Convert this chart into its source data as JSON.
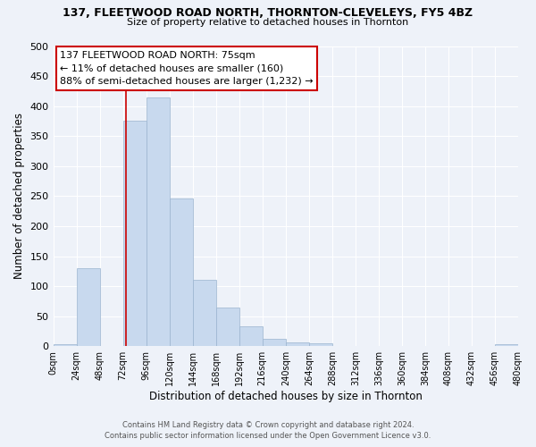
{
  "title": "137, FLEETWOOD ROAD NORTH, THORNTON-CLEVELEYS, FY5 4BZ",
  "subtitle": "Size of property relative to detached houses in Thornton",
  "xlabel": "Distribution of detached houses by size in Thornton",
  "ylabel": "Number of detached properties",
  "bar_color": "#c8d9ee",
  "bar_edge_color": "#9ab4cf",
  "background_color": "#eef2f9",
  "grid_color": "#ffffff",
  "bin_edges": [
    0,
    24,
    48,
    72,
    96,
    120,
    144,
    168,
    192,
    216,
    240,
    264,
    288,
    312,
    336,
    360,
    384,
    408,
    432,
    456,
    480
  ],
  "bin_labels": [
    "0sqm",
    "24sqm",
    "48sqm",
    "72sqm",
    "96sqm",
    "120sqm",
    "144sqm",
    "168sqm",
    "192sqm",
    "216sqm",
    "240sqm",
    "264sqm",
    "288sqm",
    "312sqm",
    "336sqm",
    "360sqm",
    "384sqm",
    "408sqm",
    "432sqm",
    "456sqm",
    "480sqm"
  ],
  "counts": [
    3,
    130,
    0,
    376,
    415,
    246,
    111,
    65,
    33,
    12,
    7,
    5,
    0,
    0,
    0,
    0,
    0,
    0,
    0,
    3
  ],
  "ylim": [
    0,
    500
  ],
  "yticks": [
    0,
    50,
    100,
    150,
    200,
    250,
    300,
    350,
    400,
    450,
    500
  ],
  "property_size": 75,
  "annotation_line1": "137 FLEETWOOD ROAD NORTH: 75sqm",
  "annotation_line2": "← 11% of detached houses are smaller (160)",
  "annotation_line3": "88% of semi-detached houses are larger (1,232) →",
  "annotation_box_color": "#ffffff",
  "annotation_box_edge": "#cc0000",
  "marker_line_color": "#cc0000",
  "footer_line1": "Contains HM Land Registry data © Crown copyright and database right 2024.",
  "footer_line2": "Contains public sector information licensed under the Open Government Licence v3.0."
}
